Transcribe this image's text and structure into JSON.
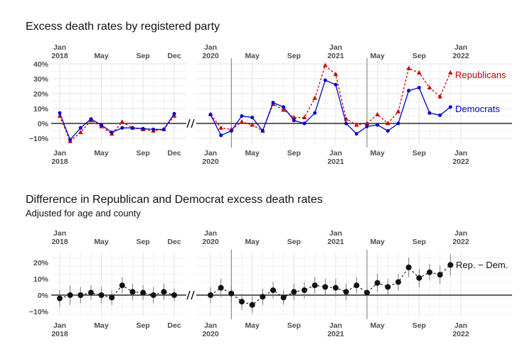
{
  "chart_data": [
    {
      "type": "line",
      "title": "Excess death rates by registered party",
      "ylim": [
        -15,
        40
      ],
      "yticks": [
        "40%",
        "30%",
        "20%",
        "10%",
        "0%",
        "−10%"
      ],
      "ytick_values": [
        40,
        30,
        20,
        10,
        0,
        -10
      ],
      "xticks_top": [
        "Jan\n2018",
        "May",
        "Sep",
        "Dec",
        "Jan\n2020",
        "May",
        "Sep",
        "Jan\n2021",
        "May",
        "Sep",
        "Jan\n2022"
      ],
      "xticks_bottom": [
        "Jan\n2018",
        "May",
        "Sep",
        "Dec",
        "Jan\n2020",
        "May",
        "Sep",
        "Jan\n2021",
        "May",
        "Sep",
        "Jan\n2022"
      ],
      "xtick_months": [
        "2018-01",
        "2018-05",
        "2018-09",
        "2018-12",
        "2020-01",
        "2020-05",
        "2020-09",
        "2021-01",
        "2021-05",
        "2021-09",
        "2022-01"
      ],
      "vlines": [
        "2020-03",
        "2021-04"
      ],
      "axis_break_between": [
        "2018-12",
        "2020-01"
      ],
      "grid": true,
      "series": [
        {
          "name": "Republicans",
          "color": "#cc0000",
          "style": "dashed",
          "marker": "triangle",
          "x": [
            "2018-01",
            "2018-02",
            "2018-03",
            "2018-04",
            "2018-05",
            "2018-06",
            "2018-07",
            "2018-08",
            "2018-09",
            "2018-10",
            "2018-11",
            "2018-12",
            "2020-01",
            "2020-02",
            "2020-03",
            "2020-04",
            "2020-05",
            "2020-06",
            "2020-07",
            "2020-08",
            "2020-09",
            "2020-10",
            "2020-11",
            "2020-12",
            "2021-01",
            "2021-02",
            "2021-03",
            "2021-04",
            "2021-05",
            "2021-06",
            "2021-07",
            "2021-08",
            "2021-09",
            "2021-10",
            "2021-11",
            "2021-12"
          ],
          "values": [
            5,
            -12,
            -6,
            2,
            -2,
            -7,
            1,
            -3,
            -4,
            -5,
            -4,
            5,
            6,
            -3,
            -4,
            1,
            -1,
            -5,
            13,
            9,
            4,
            4,
            17,
            39,
            33,
            3,
            -1,
            0,
            6,
            0,
            8,
            37,
            34,
            24,
            18,
            34
          ]
        },
        {
          "name": "Democrats",
          "color": "#0000cc",
          "style": "solid",
          "marker": "circle",
          "x": [
            "2018-01",
            "2018-02",
            "2018-03",
            "2018-04",
            "2018-05",
            "2018-06",
            "2018-07",
            "2018-08",
            "2018-09",
            "2018-10",
            "2018-11",
            "2018-12",
            "2020-01",
            "2020-02",
            "2020-03",
            "2020-04",
            "2020-05",
            "2020-06",
            "2020-07",
            "2020-08",
            "2020-09",
            "2020-10",
            "2020-11",
            "2020-12",
            "2021-01",
            "2021-02",
            "2021-03",
            "2021-04",
            "2021-05",
            "2021-06",
            "2021-07",
            "2021-08",
            "2021-09",
            "2021-10",
            "2021-11",
            "2021-12"
          ],
          "values": [
            7,
            -11,
            -3,
            3,
            -1,
            -6,
            -3,
            -3,
            -3.5,
            -4,
            -4,
            6.5,
            6,
            -8,
            -5,
            5,
            4,
            -5,
            14,
            11,
            2,
            0,
            7,
            29,
            26,
            0,
            -7,
            -2,
            -1,
            -5,
            0,
            22,
            24,
            7,
            5.5,
            11
          ]
        }
      ],
      "labels": {
        "republicans": "Republicans",
        "democrats": "Democrats"
      }
    },
    {
      "type": "scatter",
      "title": "Difference in Republican and Democrat excess death rates",
      "subtitle": "Adjusted for age and county",
      "ylim": [
        -12,
        25
      ],
      "yticks": [
        "20%",
        "10%",
        "0%",
        "−10%"
      ],
      "ytick_values": [
        20,
        10,
        0,
        -10
      ],
      "xticks_top": [
        "Jan\n2018",
        "May",
        "Sep",
        "Dec",
        "Jan\n2020",
        "May",
        "Sep",
        "Jan\n2021",
        "May",
        "Sep",
        "Jan\n2022"
      ],
      "xticks_bottom": [
        "Jan\n2018",
        "May",
        "Sep",
        "Dec",
        "Jan\n2020",
        "May",
        "Sep",
        "Jan\n2021",
        "May",
        "Sep",
        "Jan\n2022"
      ],
      "xtick_months": [
        "2018-01",
        "2018-05",
        "2018-09",
        "2018-12",
        "2020-01",
        "2020-05",
        "2020-09",
        "2021-01",
        "2021-05",
        "2021-09",
        "2022-01"
      ],
      "vlines": [
        "2020-03",
        "2021-04"
      ],
      "axis_break_between": [
        "2018-12",
        "2020-01"
      ],
      "grid": true,
      "series": [
        {
          "name": "Rep. − Dem.",
          "color": "#111111",
          "style": "dashed",
          "marker": "circle",
          "error_bars": true,
          "x": [
            "2018-01",
            "2018-02",
            "2018-03",
            "2018-04",
            "2018-05",
            "2018-06",
            "2018-07",
            "2018-08",
            "2018-09",
            "2018-10",
            "2018-11",
            "2018-12",
            "2020-01",
            "2020-02",
            "2020-03",
            "2020-04",
            "2020-05",
            "2020-06",
            "2020-07",
            "2020-08",
            "2020-09",
            "2020-10",
            "2020-11",
            "2020-12",
            "2021-01",
            "2021-02",
            "2021-03",
            "2021-04",
            "2021-05",
            "2021-06",
            "2021-07",
            "2021-08",
            "2021-09",
            "2021-10",
            "2021-11",
            "2021-12"
          ],
          "values": [
            -2,
            0,
            0,
            1.5,
            0,
            -1.5,
            6,
            2,
            1.5,
            0,
            2,
            0,
            0,
            4.5,
            1,
            -4,
            -6,
            -1,
            3,
            -1.5,
            2,
            3,
            6,
            5,
            4.5,
            2,
            6,
            1.5,
            7.5,
            5,
            8,
            17,
            10.5,
            14,
            12.5,
            18.5
          ],
          "lower": [
            -7,
            -6,
            -5,
            -3,
            -5,
            -6,
            1,
            -3,
            -3,
            -5,
            -3,
            -4,
            -5,
            -1,
            -4,
            -9,
            -11,
            -6,
            -2,
            -6,
            -3,
            -2,
            1,
            0,
            -1,
            -3,
            1,
            -4,
            2,
            0,
            3,
            11,
            5,
            9,
            7,
            12
          ],
          "upper": [
            3,
            6,
            5,
            6,
            5,
            3,
            11,
            7,
            6,
            5,
            7,
            4,
            5,
            10,
            6,
            1,
            -1,
            4,
            8,
            3,
            7,
            8,
            11,
            10,
            10,
            7,
            11,
            7,
            13,
            10,
            13,
            23,
            16,
            19,
            18,
            25
          ]
        }
      ],
      "labels": {
        "diff": "Rep. − Dem."
      }
    }
  ]
}
